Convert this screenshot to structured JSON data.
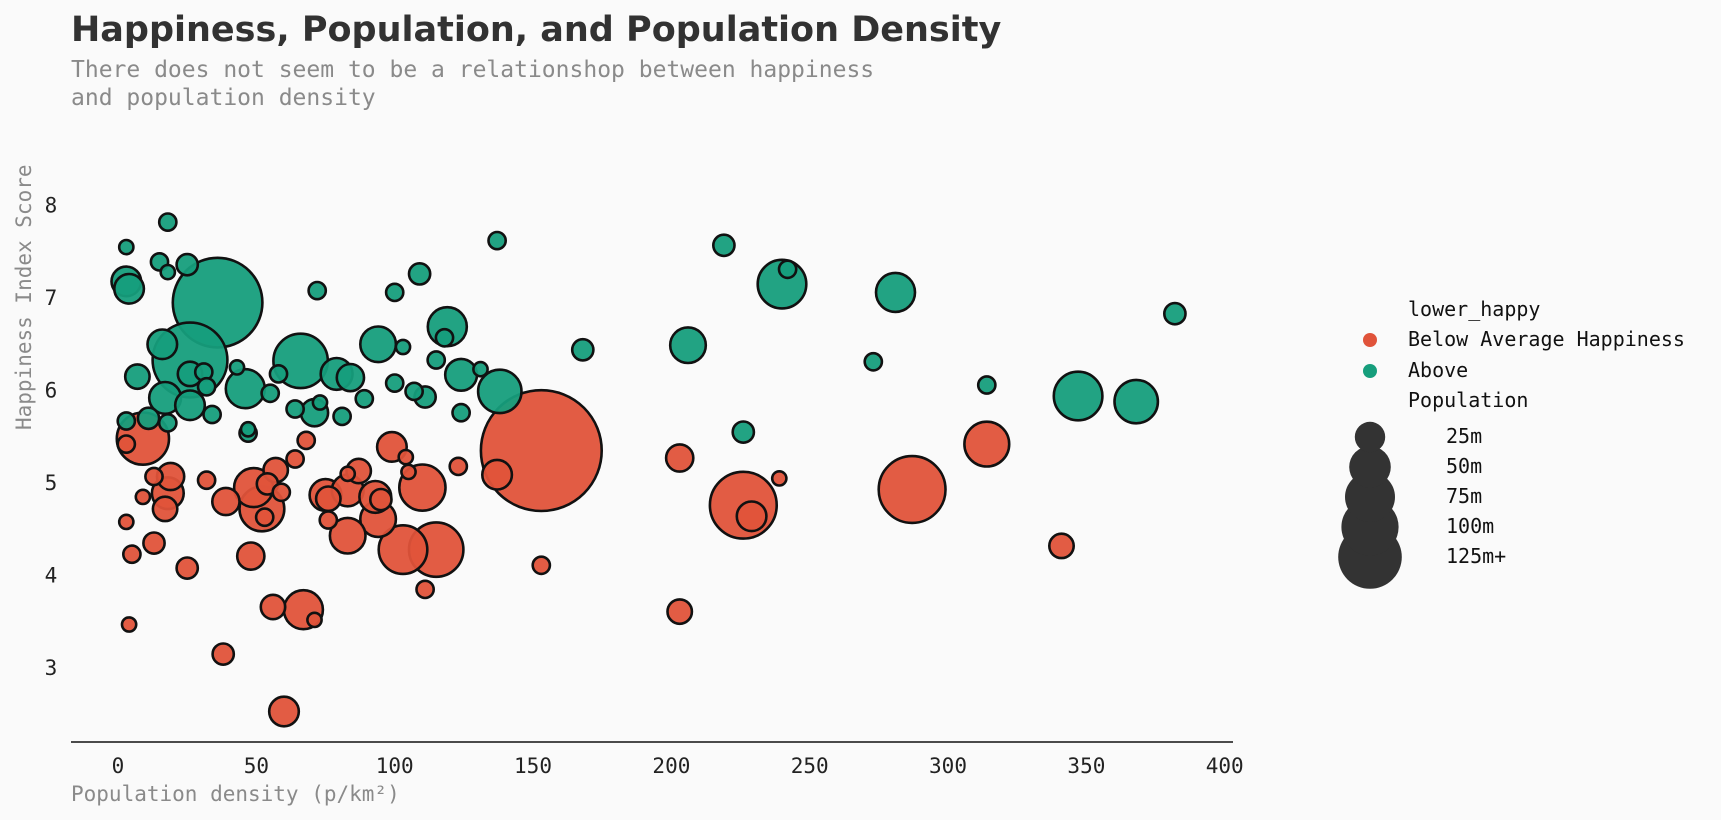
{
  "chart_data": {
    "type": "scatter",
    "title": "Happiness, Population, and Population Density",
    "subtitle": [
      "There does not seem to be a relationshop between happiness",
      "and population density"
    ],
    "xlabel": "Population density (p/km²)",
    "ylabel": "Happiness Index Score",
    "xlim": [
      -17,
      403
    ],
    "ylim": [
      2.2,
      8.6
    ],
    "xticks": [
      0,
      50,
      100,
      150,
      200,
      250,
      300,
      350,
      400
    ],
    "yticks": [
      3,
      4,
      5,
      6,
      7,
      8
    ],
    "grid": false,
    "colors": {
      "below": "#e0533a",
      "above": "#169e7c",
      "size_legend": "#333333",
      "edge": "#111111"
    },
    "legend": {
      "placement": "right",
      "hue_title": "lower_happy",
      "hue_entries": [
        "Below Average Happiness",
        "Above"
      ],
      "size_title": "Population",
      "size_entries": [
        {
          "label": "25m",
          "population_m": 25
        },
        {
          "label": "50m",
          "population_m": 50
        },
        {
          "label": "75m",
          "population_m": 75
        },
        {
          "label": "100m",
          "population_m": 100
        },
        {
          "label": "125m+",
          "population_m": 125
        }
      ]
    },
    "series": [
      {
        "name": "Above",
        "points": [
          [
            18,
            7.82,
            1
          ],
          [
            3,
            7.55,
            0.5
          ],
          [
            15,
            7.39,
            1
          ],
          [
            25,
            7.36,
            2
          ],
          [
            18,
            7.28,
            0.5
          ],
          [
            3,
            7.18,
            5
          ],
          [
            4,
            7.1,
            5
          ],
          [
            36,
            6.95,
            67
          ],
          [
            72,
            7.08,
            1
          ],
          [
            100,
            7.06,
            1
          ],
          [
            109,
            7.26,
            2
          ],
          [
            137,
            7.62,
            1
          ],
          [
            219,
            7.57,
            2
          ],
          [
            242,
            7.31,
            1
          ],
          [
            240,
            7.15,
            17
          ],
          [
            281,
            7.06,
            10
          ],
          [
            382,
            6.83,
            2
          ],
          [
            16,
            6.5,
            5
          ],
          [
            26,
            6.33,
            45
          ],
          [
            7,
            6.15,
            3
          ],
          [
            26,
            6.18,
            3
          ],
          [
            31,
            6.2,
            1
          ],
          [
            17,
            5.92,
            6
          ],
          [
            32,
            6.04,
            1
          ],
          [
            26,
            5.84,
            5
          ],
          [
            11,
            5.7,
            2
          ],
          [
            34,
            5.74,
            1
          ],
          [
            18,
            5.65,
            1
          ],
          [
            3,
            5.67,
            1
          ],
          [
            43,
            6.25,
            0.5
          ],
          [
            46,
            6.02,
            10
          ],
          [
            55,
            5.97,
            1
          ],
          [
            58,
            6.18,
            1
          ],
          [
            66,
            6.32,
            22
          ],
          [
            79,
            6.18,
            6
          ],
          [
            84,
            6.14,
            4
          ],
          [
            73,
            5.87,
            0.5
          ],
          [
            64,
            5.8,
            1
          ],
          [
            71,
            5.76,
            4
          ],
          [
            81,
            5.72,
            1
          ],
          [
            89,
            5.91,
            1
          ],
          [
            94,
            6.5,
            8
          ],
          [
            100,
            6.08,
            1
          ],
          [
            103,
            6.47,
            0.5
          ],
          [
            107,
            5.99,
            1
          ],
          [
            111,
            5.93,
            2
          ],
          [
            115,
            6.33,
            1
          ],
          [
            119,
            6.69,
            10
          ],
          [
            118,
            6.57,
            1
          ],
          [
            124,
            6.17,
            6
          ],
          [
            131,
            6.23,
            0.5
          ],
          [
            138,
            5.99,
            13
          ],
          [
            124,
            5.76,
            1
          ],
          [
            168,
            6.44,
            2
          ],
          [
            206,
            6.49,
            8
          ],
          [
            226,
            5.55,
            2
          ],
          [
            273,
            6.31,
            1
          ],
          [
            314,
            6.06,
            1
          ],
          [
            347,
            5.94,
            17
          ],
          [
            368,
            5.88,
            13
          ],
          [
            47,
            5.58,
            0.5
          ],
          [
            47,
            5.54,
            1
          ]
        ]
      },
      {
        "name": "Below Average Happiness",
        "points": [
          [
            9,
            5.48,
            20
          ],
          [
            3,
            5.42,
            1
          ],
          [
            13,
            5.07,
            1
          ],
          [
            19,
            5.07,
            4
          ],
          [
            9,
            4.85,
            0.5
          ],
          [
            18,
            4.89,
            6
          ],
          [
            17,
            4.72,
            3
          ],
          [
            3,
            4.58,
            0.5
          ],
          [
            5,
            4.23,
            1
          ],
          [
            13,
            4.35,
            2
          ],
          [
            25,
            4.08,
            2
          ],
          [
            4,
            3.47,
            0.5
          ],
          [
            32,
            5.03,
            1
          ],
          [
            39,
            4.8,
            4
          ],
          [
            49,
            4.95,
            10
          ],
          [
            54,
            4.99,
            2
          ],
          [
            57,
            5.14,
            3
          ],
          [
            59,
            4.9,
            1
          ],
          [
            52,
            4.72,
            14
          ],
          [
            53,
            4.63,
            1
          ],
          [
            48,
            4.21,
            4
          ],
          [
            56,
            3.66,
            3
          ],
          [
            67,
            3.63,
            10
          ],
          [
            71,
            3.52,
            0.5
          ],
          [
            38,
            3.15,
            2
          ],
          [
            60,
            2.53,
            5
          ],
          [
            64,
            5.26,
            1
          ],
          [
            68,
            5.46,
            1
          ],
          [
            75,
            4.87,
            6
          ],
          [
            76,
            4.83,
            3
          ],
          [
            76,
            4.6,
            1
          ],
          [
            83,
            4.92,
            6
          ],
          [
            83,
            5.1,
            0.5
          ],
          [
            87,
            5.13,
            3
          ],
          [
            93,
            4.85,
            6
          ],
          [
            95,
            4.82,
            2
          ],
          [
            94,
            4.61,
            8
          ],
          [
            83,
            4.43,
            8
          ],
          [
            99,
            5.39,
            5
          ],
          [
            104,
            5.28,
            0.5
          ],
          [
            105,
            5.12,
            0.5
          ],
          [
            110,
            4.95,
            15
          ],
          [
            103,
            4.28,
            17
          ],
          [
            115,
            4.28,
            22
          ],
          [
            111,
            3.85,
            1
          ],
          [
            123,
            5.18,
            1
          ],
          [
            137,
            5.09,
            5
          ],
          [
            153,
            4.11,
            1
          ],
          [
            153,
            5.35,
            127
          ],
          [
            203,
            5.27,
            4
          ],
          [
            203,
            3.61,
            3
          ],
          [
            226,
            4.76,
            35
          ],
          [
            229,
            4.64,
            5
          ],
          [
            239,
            5.05,
            0.5
          ],
          [
            287,
            4.93,
            35
          ],
          [
            314,
            5.42,
            14
          ],
          [
            341,
            4.32,
            3
          ]
        ]
      }
    ]
  }
}
